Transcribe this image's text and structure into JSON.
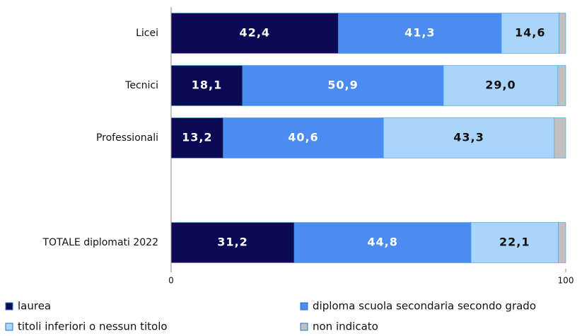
{
  "chart_data": {
    "type": "stacked-bar-horizontal",
    "categories": [
      "Licei",
      "Tecnici",
      "Professionali",
      null,
      "TOTALE diplomati 2022"
    ],
    "series": [
      {
        "name": "laurea",
        "color": "#0b0b55",
        "label_color": "#ffffff",
        "values": [
          42.4,
          18.1,
          13.2,
          null,
          31.2
        ],
        "value_labels": [
          "42,4",
          "18,1",
          "13,2",
          null,
          "31,2"
        ]
      },
      {
        "name": "diploma scuola secondaria secondo grado",
        "color": "#4a8cf0",
        "label_color": "#ffffff",
        "values": [
          41.3,
          50.9,
          40.6,
          null,
          44.8
        ],
        "value_labels": [
          "41,3",
          "50,9",
          "40,6",
          null,
          "44,8"
        ]
      },
      {
        "name": "titoli inferiori o nessun titolo",
        "color": "#a9d5fb",
        "label_color": "#111111",
        "values": [
          14.6,
          29.0,
          43.3,
          null,
          22.1
        ],
        "value_labels": [
          "14,6",
          "29,0",
          "43,3",
          null,
          "22,1"
        ]
      },
      {
        "name": "non indicato",
        "color": "#c0c0c0",
        "values": [
          1.7,
          2.0,
          2.9,
          null,
          1.9
        ]
      }
    ],
    "xlim": [
      0,
      100
    ],
    "xticks": [
      0,
      100
    ]
  }
}
